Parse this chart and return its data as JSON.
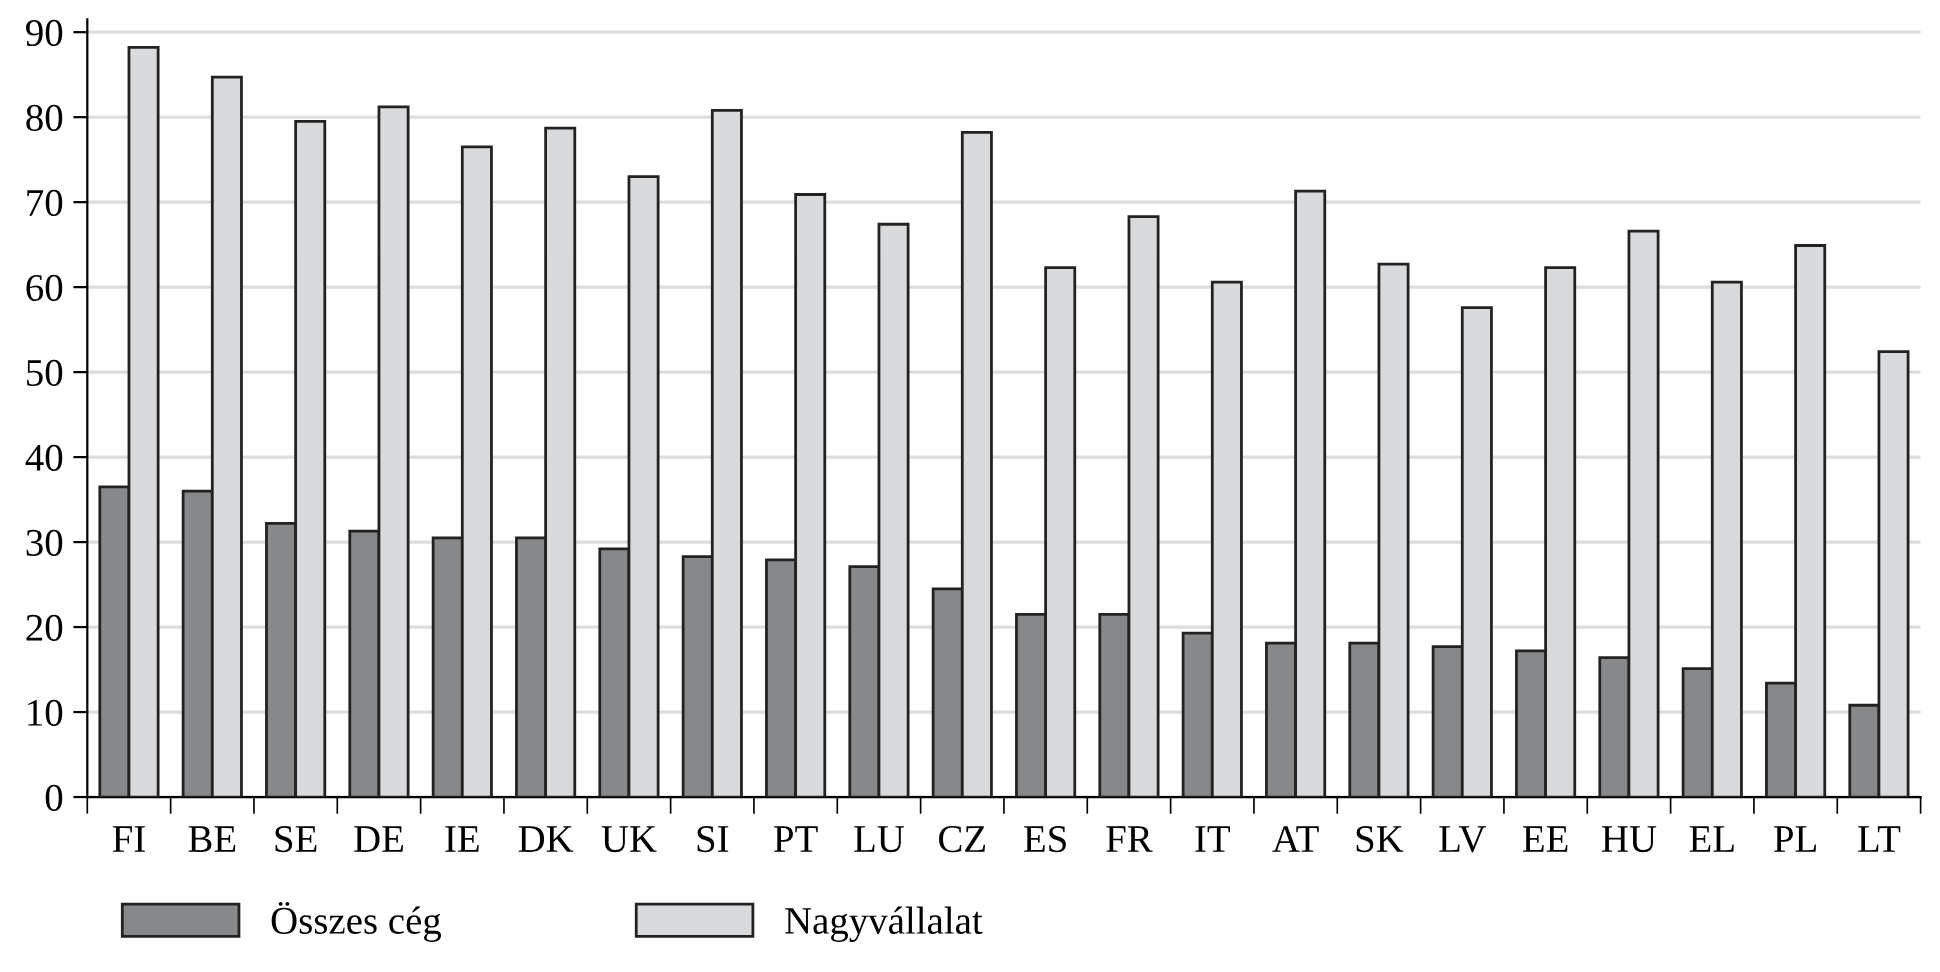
{
  "chart_data": {
    "type": "bar",
    "categories": [
      "FI",
      "BE",
      "SE",
      "DE",
      "IE",
      "DK",
      "UK",
      "SI",
      "PT",
      "LU",
      "CZ",
      "ES",
      "FR",
      "IT",
      "AT",
      "SK",
      "LV",
      "EE",
      "HU",
      "EL",
      "PL",
      "LT"
    ],
    "series": [
      {
        "name": "Összes cég",
        "color": "#87888a",
        "values": [
          36.5,
          36,
          32.2,
          31.3,
          30.5,
          30.5,
          29.2,
          28.3,
          27.9,
          27.1,
          24.5,
          21.5,
          21.5,
          19.3,
          18.1,
          18.1,
          17.7,
          17.2,
          16.4,
          15.1,
          13.4,
          10.8
        ]
      },
      {
        "name": "Nagyvállalat",
        "color": "#d9dadc",
        "values": [
          88.2,
          84.7,
          79.5,
          81.2,
          76.5,
          78.7,
          73.0,
          80.8,
          70.9,
          67.4,
          78.2,
          62.3,
          68.3,
          60.6,
          71.3,
          62.7,
          57.6,
          62.3,
          66.6,
          60.6,
          64.9,
          52.4
        ]
      }
    ],
    "ylim": [
      0,
      91.5
    ],
    "yticks": [
      0,
      10,
      20,
      30,
      40,
      50,
      60,
      70,
      80,
      90
    ],
    "grid": "y",
    "legend": "bottom left"
  }
}
